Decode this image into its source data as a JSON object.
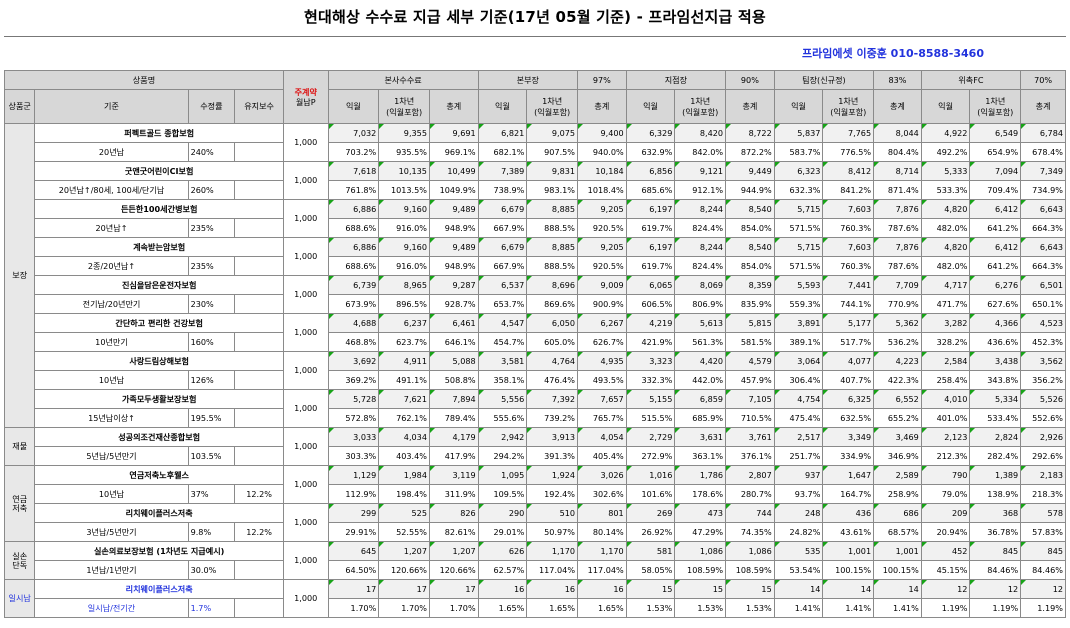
{
  "title": "현대해상 수수료 지급 세부 기준(17년 05월 기준) - 프라임선지급 적용",
  "contact": "프라임에셋 이중훈 010-8588-3460",
  "header": {
    "product": "상품명",
    "monthly_line1": "주계약",
    "monthly_line2": "월납P",
    "groups": [
      {
        "label": "본사수수료",
        "pct": ""
      },
      {
        "label": "본부장",
        "pct": "97%"
      },
      {
        "label": "지점장",
        "pct": "90%"
      },
      {
        "label": "팀장(신규정)",
        "pct": "83%"
      },
      {
        "label": "위촉FC",
        "pct": "70%"
      }
    ],
    "cols": {
      "group": "상품군",
      "basis": "기준",
      "rate": "수정률",
      "boryu": "유지보수",
      "first": "익월",
      "year1_line1": "1차년",
      "year1_line2": "(익월포함)",
      "total": "총계"
    }
  },
  "groups": [
    {
      "label": "보장",
      "products": [
        {
          "name": "퍼펙트골드 종합보험",
          "basis": "20년납",
          "rate": "240%",
          "boryu": "",
          "monthly": "1,000",
          "blue": false,
          "values": [
            "7,032",
            "9,355",
            "9,691",
            "6,821",
            "9,075",
            "9,400",
            "6,329",
            "8,420",
            "8,722",
            "5,837",
            "7,765",
            "8,044",
            "4,922",
            "6,549",
            "6,784"
          ],
          "pcts": [
            "703.2%",
            "935.5%",
            "969.1%",
            "682.1%",
            "907.5%",
            "940.0%",
            "632.9%",
            "842.0%",
            "872.2%",
            "583.7%",
            "776.5%",
            "804.4%",
            "492.2%",
            "654.9%",
            "678.4%"
          ]
        },
        {
          "name": "굿앤굿어린이CI보험",
          "basis": "20년납↑/80세, 100세/단기납",
          "rate": "260%",
          "boryu": "",
          "monthly": "1,000",
          "blue": false,
          "values": [
            "7,618",
            "10,135",
            "10,499",
            "7,389",
            "9,831",
            "10,184",
            "6,856",
            "9,121",
            "9,449",
            "6,323",
            "8,412",
            "8,714",
            "5,333",
            "7,094",
            "7,349"
          ],
          "pcts": [
            "761.8%",
            "1013.5%",
            "1049.9%",
            "738.9%",
            "983.1%",
            "1018.4%",
            "685.6%",
            "912.1%",
            "944.9%",
            "632.3%",
            "841.2%",
            "871.4%",
            "533.3%",
            "709.4%",
            "734.9%"
          ]
        },
        {
          "name": "든든한100세간병보험",
          "basis": "20년납↑",
          "rate": "235%",
          "boryu": "",
          "monthly": "1,000",
          "blue": false,
          "values": [
            "6,886",
            "9,160",
            "9,489",
            "6,679",
            "8,885",
            "9,205",
            "6,197",
            "8,244",
            "8,540",
            "5,715",
            "7,603",
            "7,876",
            "4,820",
            "6,412",
            "6,643"
          ],
          "pcts": [
            "688.6%",
            "916.0%",
            "948.9%",
            "667.9%",
            "888.5%",
            "920.5%",
            "619.7%",
            "824.4%",
            "854.0%",
            "571.5%",
            "760.3%",
            "787.6%",
            "482.0%",
            "641.2%",
            "664.3%"
          ]
        },
        {
          "name": "계속받는암보험",
          "basis": "2종/20년납↑",
          "rate": "235%",
          "boryu": "",
          "monthly": "1,000",
          "blue": false,
          "values": [
            "6,886",
            "9,160",
            "9,489",
            "6,679",
            "8,885",
            "9,205",
            "6,197",
            "8,244",
            "8,540",
            "5,715",
            "7,603",
            "7,876",
            "4,820",
            "6,412",
            "6,643"
          ],
          "pcts": [
            "688.6%",
            "916.0%",
            "948.9%",
            "667.9%",
            "888.5%",
            "920.5%",
            "619.7%",
            "824.4%",
            "854.0%",
            "571.5%",
            "760.3%",
            "787.6%",
            "482.0%",
            "641.2%",
            "664.3%"
          ]
        },
        {
          "name": "진심을담은운전자보험",
          "basis": "전기납/20년만기",
          "rate": "230%",
          "boryu": "",
          "monthly": "1,000",
          "blue": false,
          "values": [
            "6,739",
            "8,965",
            "9,287",
            "6,537",
            "8,696",
            "9,009",
            "6,065",
            "8,069",
            "8,359",
            "5,593",
            "7,441",
            "7,709",
            "4,717",
            "6,276",
            "6,501"
          ],
          "pcts": [
            "673.9%",
            "896.5%",
            "928.7%",
            "653.7%",
            "869.6%",
            "900.9%",
            "606.5%",
            "806.9%",
            "835.9%",
            "559.3%",
            "744.1%",
            "770.9%",
            "471.7%",
            "627.6%",
            "650.1%"
          ]
        },
        {
          "name": "간단하고 편리한 건강보험",
          "basis": "10년만기",
          "rate": "160%",
          "boryu": "",
          "monthly": "1,000",
          "blue": false,
          "values": [
            "4,688",
            "6,237",
            "6,461",
            "4,547",
            "6,050",
            "6,267",
            "4,219",
            "5,613",
            "5,815",
            "3,891",
            "5,177",
            "5,362",
            "3,282",
            "4,366",
            "4,523"
          ],
          "pcts": [
            "468.8%",
            "623.7%",
            "646.1%",
            "454.7%",
            "605.0%",
            "626.7%",
            "421.9%",
            "561.3%",
            "581.5%",
            "389.1%",
            "517.7%",
            "536.2%",
            "328.2%",
            "436.6%",
            "452.3%"
          ]
        },
        {
          "name": "사랑드림상해보험",
          "basis": "10년납",
          "rate": "126%",
          "boryu": "",
          "monthly": "1,000",
          "blue": false,
          "values": [
            "3,692",
            "4,911",
            "5,088",
            "3,581",
            "4,764",
            "4,935",
            "3,323",
            "4,420",
            "4,579",
            "3,064",
            "4,077",
            "4,223",
            "2,584",
            "3,438",
            "3,562"
          ],
          "pcts": [
            "369.2%",
            "491.1%",
            "508.8%",
            "358.1%",
            "476.4%",
            "493.5%",
            "332.3%",
            "442.0%",
            "457.9%",
            "306.4%",
            "407.7%",
            "422.3%",
            "258.4%",
            "343.8%",
            "356.2%"
          ]
        },
        {
          "name": "가족모두생활보장보험",
          "basis": "15년납이상↑",
          "rate": "195.5%",
          "boryu": "",
          "monthly": "1,000",
          "blue": false,
          "values": [
            "5,728",
            "7,621",
            "7,894",
            "5,556",
            "7,392",
            "7,657",
            "5,155",
            "6,859",
            "7,105",
            "4,754",
            "6,325",
            "6,552",
            "4,010",
            "5,334",
            "5,526"
          ],
          "pcts": [
            "572.8%",
            "762.1%",
            "789.4%",
            "555.6%",
            "739.2%",
            "765.7%",
            "515.5%",
            "685.9%",
            "710.5%",
            "475.4%",
            "632.5%",
            "655.2%",
            "401.0%",
            "533.4%",
            "552.6%"
          ]
        }
      ]
    },
    {
      "label": "재물",
      "products": [
        {
          "name": "성공의조건재산종합보험",
          "basis": "5년납/5년만기",
          "rate": "103.5%",
          "boryu": "",
          "monthly": "1,000",
          "blue": false,
          "values": [
            "3,033",
            "4,034",
            "4,179",
            "2,942",
            "3,913",
            "4,054",
            "2,729",
            "3,631",
            "3,761",
            "2,517",
            "3,349",
            "3,469",
            "2,123",
            "2,824",
            "2,926"
          ],
          "pcts": [
            "303.3%",
            "403.4%",
            "417.9%",
            "294.2%",
            "391.3%",
            "405.4%",
            "272.9%",
            "363.1%",
            "376.1%",
            "251.7%",
            "334.9%",
            "346.9%",
            "212.3%",
            "282.4%",
            "292.6%"
          ]
        }
      ]
    },
    {
      "label": "연금\n저축",
      "products": [
        {
          "name": "연금저축노후웰스",
          "basis": "10년납",
          "rate": "37%",
          "boryu": "12.2%",
          "monthly": "1,000",
          "blue": false,
          "values": [
            "1,129",
            "1,984",
            "3,119",
            "1,095",
            "1,924",
            "3,026",
            "1,016",
            "1,786",
            "2,807",
            "937",
            "1,647",
            "2,589",
            "790",
            "1,389",
            "2,183"
          ],
          "pcts": [
            "112.9%",
            "198.4%",
            "311.9%",
            "109.5%",
            "192.4%",
            "302.6%",
            "101.6%",
            "178.6%",
            "280.7%",
            "93.7%",
            "164.7%",
            "258.9%",
            "79.0%",
            "138.9%",
            "218.3%"
          ]
        },
        {
          "name": "리치웨이플러스저축",
          "basis": "3년납/5년만기",
          "rate": "9.8%",
          "boryu": "12.2%",
          "monthly": "1,000",
          "blue": false,
          "values": [
            "299",
            "525",
            "826",
            "290",
            "510",
            "801",
            "269",
            "473",
            "744",
            "248",
            "436",
            "686",
            "209",
            "368",
            "578"
          ],
          "pcts": [
            "29.91%",
            "52.55%",
            "82.61%",
            "29.01%",
            "50.97%",
            "80.14%",
            "26.92%",
            "47.29%",
            "74.35%",
            "24.82%",
            "43.61%",
            "68.57%",
            "20.94%",
            "36.78%",
            "57.83%"
          ]
        }
      ]
    },
    {
      "label": "실손\n단독",
      "products": [
        {
          "name": "실손의료보장보험 (1차년도 지급예시)",
          "basis": "1년납/1년만기",
          "rate": "30.0%",
          "boryu": "",
          "monthly": "1,000",
          "blue": false,
          "values": [
            "645",
            "1,207",
            "1,207",
            "626",
            "1,170",
            "1,170",
            "581",
            "1,086",
            "1,086",
            "535",
            "1,001",
            "1,001",
            "452",
            "845",
            "845"
          ],
          "pcts": [
            "64.50%",
            "120.66%",
            "120.66%",
            "62.57%",
            "117.04%",
            "117.04%",
            "58.05%",
            "108.59%",
            "108.59%",
            "53.54%",
            "100.15%",
            "100.15%",
            "45.15%",
            "84.46%",
            "84.46%"
          ]
        }
      ]
    },
    {
      "label": "일시납",
      "blue": true,
      "products": [
        {
          "name": "리치웨이플러스저축",
          "basis": "일시납/전기간",
          "rate": "1.7%",
          "boryu": "",
          "monthly": "1,000",
          "blue": true,
          "values": [
            "17",
            "17",
            "17",
            "16",
            "16",
            "16",
            "15",
            "15",
            "15",
            "14",
            "14",
            "14",
            "12",
            "12",
            "12"
          ],
          "pcts": [
            "1.70%",
            "1.70%",
            "1.70%",
            "1.65%",
            "1.65%",
            "1.65%",
            "1.53%",
            "1.53%",
            "1.53%",
            "1.41%",
            "1.41%",
            "1.41%",
            "1.19%",
            "1.19%",
            "1.19%"
          ]
        }
      ]
    }
  ]
}
